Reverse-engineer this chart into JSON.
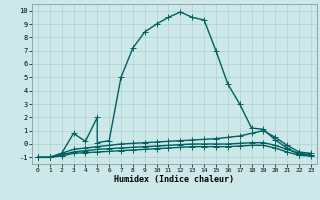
{
  "title": "",
  "xlabel": "Humidex (Indice chaleur)",
  "ylabel": "",
  "xlim": [
    -0.5,
    23.5
  ],
  "ylim": [
    -1.5,
    10.5
  ],
  "yticks": [
    -1,
    0,
    1,
    2,
    3,
    4,
    5,
    6,
    7,
    8,
    9,
    10
  ],
  "xticks": [
    0,
    1,
    2,
    3,
    4,
    5,
    6,
    7,
    8,
    9,
    10,
    11,
    12,
    13,
    14,
    15,
    16,
    17,
    18,
    19,
    20,
    21,
    22,
    23
  ],
  "background_color": "#cce8e8",
  "grid_color": "#b0d0d0",
  "line_color": "#006060",
  "line_width": 1.0,
  "marker": "+",
  "marker_size": 4,
  "series": [
    {
      "x": [
        0,
        1,
        2,
        3,
        4,
        5,
        5,
        6,
        7,
        8,
        9,
        10,
        11,
        12,
        13,
        14,
        15,
        16,
        17,
        18,
        19,
        20,
        21,
        22,
        23
      ],
      "y": [
        -1,
        -1,
        -0.7,
        0.8,
        0.2,
        2.0,
        0.1,
        0.25,
        5.0,
        7.2,
        8.4,
        9.0,
        9.5,
        9.9,
        9.5,
        9.3,
        7.0,
        4.5,
        3.0,
        1.2,
        1.1,
        0.3,
        -0.3,
        -0.8,
        -0.8
      ]
    },
    {
      "x": [
        0,
        1,
        2,
        3,
        4,
        5,
        6,
        7,
        8,
        9,
        10,
        11,
        12,
        13,
        14,
        15,
        16,
        17,
        18,
        19,
        20,
        21,
        22,
        23
      ],
      "y": [
        -1,
        -1,
        -0.7,
        -0.4,
        -0.3,
        -0.2,
        -0.1,
        0.0,
        0.05,
        0.1,
        0.15,
        0.2,
        0.25,
        0.3,
        0.35,
        0.4,
        0.5,
        0.6,
        0.8,
        1.0,
        0.5,
        -0.1,
        -0.6,
        -0.7
      ]
    },
    {
      "x": [
        0,
        1,
        2,
        3,
        4,
        5,
        6,
        7,
        8,
        9,
        10,
        11,
        12,
        13,
        14,
        15,
        16,
        17,
        18,
        19,
        20,
        21,
        22,
        23
      ],
      "y": [
        -1,
        -1,
        -0.8,
        -0.6,
        -0.5,
        -0.4,
        -0.35,
        -0.3,
        -0.25,
        -0.2,
        -0.15,
        -0.1,
        -0.05,
        0.0,
        0.0,
        0.0,
        0.0,
        0.05,
        0.1,
        0.1,
        -0.1,
        -0.4,
        -0.7,
        -0.8
      ]
    },
    {
      "x": [
        0,
        1,
        2,
        3,
        4,
        5,
        6,
        7,
        8,
        9,
        10,
        11,
        12,
        13,
        14,
        15,
        16,
        17,
        18,
        19,
        20,
        21,
        22,
        23
      ],
      "y": [
        -1,
        -1,
        -0.9,
        -0.7,
        -0.65,
        -0.6,
        -0.55,
        -0.5,
        -0.45,
        -0.4,
        -0.35,
        -0.3,
        -0.25,
        -0.2,
        -0.2,
        -0.2,
        -0.2,
        -0.15,
        -0.1,
        -0.1,
        -0.3,
        -0.6,
        -0.85,
        -0.9
      ]
    }
  ]
}
